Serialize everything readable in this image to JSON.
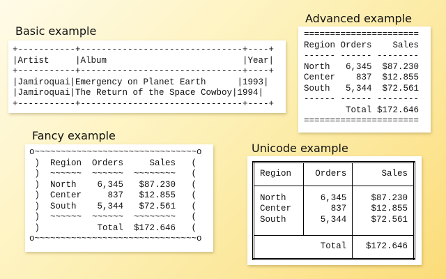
{
  "basic": {
    "title": "Basic example",
    "lines": [
      "+-----------+-------------------------------+----+",
      "|Artist     |Album                          |Year|",
      "+-----------+-------------------------------+----+",
      "|Jamiroquai|Emergency on Planet Earth      |1993|",
      "|Jamiroquai|The Return of the Space Cowboy|1994|",
      "+-----------+-------------------------------+----+"
    ]
  },
  "advanced": {
    "title": "Advanced example",
    "lines": [
      "======================",
      "Region Orders    Sales",
      "------ ------ --------",
      "North   6,345  $87.230",
      "Center    837  $12.855",
      "South   5,344  $72.561",
      "------ ------ --------",
      "        Total $172.646",
      "======================"
    ]
  },
  "fancy": {
    "title": "Fancy example",
    "lines": [
      "o~~~~~~~~~~~~~~~~~~~~~~~~~~~~~~~o",
      " )  Region  Orders     Sales   (",
      " )  ~~~~~~  ~~~~~~  ~~~~~~~~   (",
      " )  North    6,345   $87.230   (",
      " )  Center     837   $12.855   (",
      " )  South    5,344   $72.561   (",
      " )  ~~~~~~  ~~~~~~  ~~~~~~~~   (",
      " )           Total  $172.646   (",
      "o~~~~~~~~~~~~~~~~~~~~~~~~~~~~~~~o"
    ]
  },
  "unicode": {
    "title": "Unicode example",
    "header": [
      "Region",
      "Orders",
      "Sales"
    ],
    "regions": "North\nCenter\nSouth",
    "orders": "6,345\n837\n5,344",
    "sales": "$87.230\n$12.855\n$72.561",
    "total_label": "Total",
    "total_value": "$172.646"
  }
}
